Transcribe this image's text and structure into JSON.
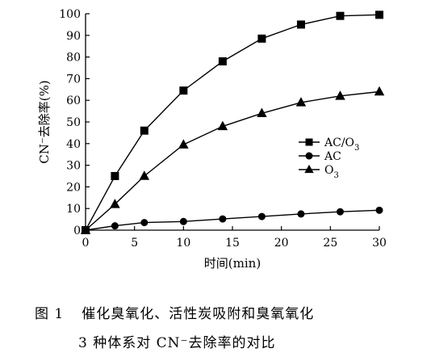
{
  "chart_data": {
    "type": "line",
    "xlabel": "时间(min)",
    "ylabel": "CN⁻去除率(%)",
    "xlim": [
      0,
      30
    ],
    "ylim": [
      0,
      100
    ],
    "xticks": [
      0,
      5,
      10,
      15,
      20,
      25,
      30
    ],
    "yticks": [
      0,
      10,
      20,
      30,
      40,
      50,
      60,
      70,
      80,
      90,
      100
    ],
    "grid": false,
    "legend_position": "right-middle",
    "series": [
      {
        "name": "AC/O3",
        "name_main": "AC/O",
        "name_sub": "3",
        "marker": "square",
        "x": [
          0,
          3,
          6,
          10,
          14,
          18,
          22,
          26,
          30
        ],
        "y": [
          0,
          25,
          46,
          64.5,
          78,
          88.5,
          95,
          99,
          99.5
        ]
      },
      {
        "name": "AC",
        "name_main": "AC",
        "name_sub": "",
        "marker": "circle",
        "x": [
          0,
          3,
          6,
          10,
          14,
          18,
          22,
          26,
          30
        ],
        "y": [
          0,
          2,
          3.5,
          4,
          5.2,
          6.3,
          7.5,
          8.5,
          9.2
        ]
      },
      {
        "name": "O3",
        "name_main": "O",
        "name_sub": "3",
        "marker": "triangle",
        "x": [
          0,
          3,
          6,
          10,
          14,
          18,
          22,
          26,
          30
        ],
        "y": [
          0,
          12,
          25,
          39.5,
          48,
          54,
          59,
          62,
          64
        ]
      }
    ]
  },
  "caption": {
    "number": "图 1",
    "line1": "催化臭氧化、活性炭吸附和臭氧氧化",
    "line2": "3 种体系对 CN⁻去除率的对比"
  }
}
